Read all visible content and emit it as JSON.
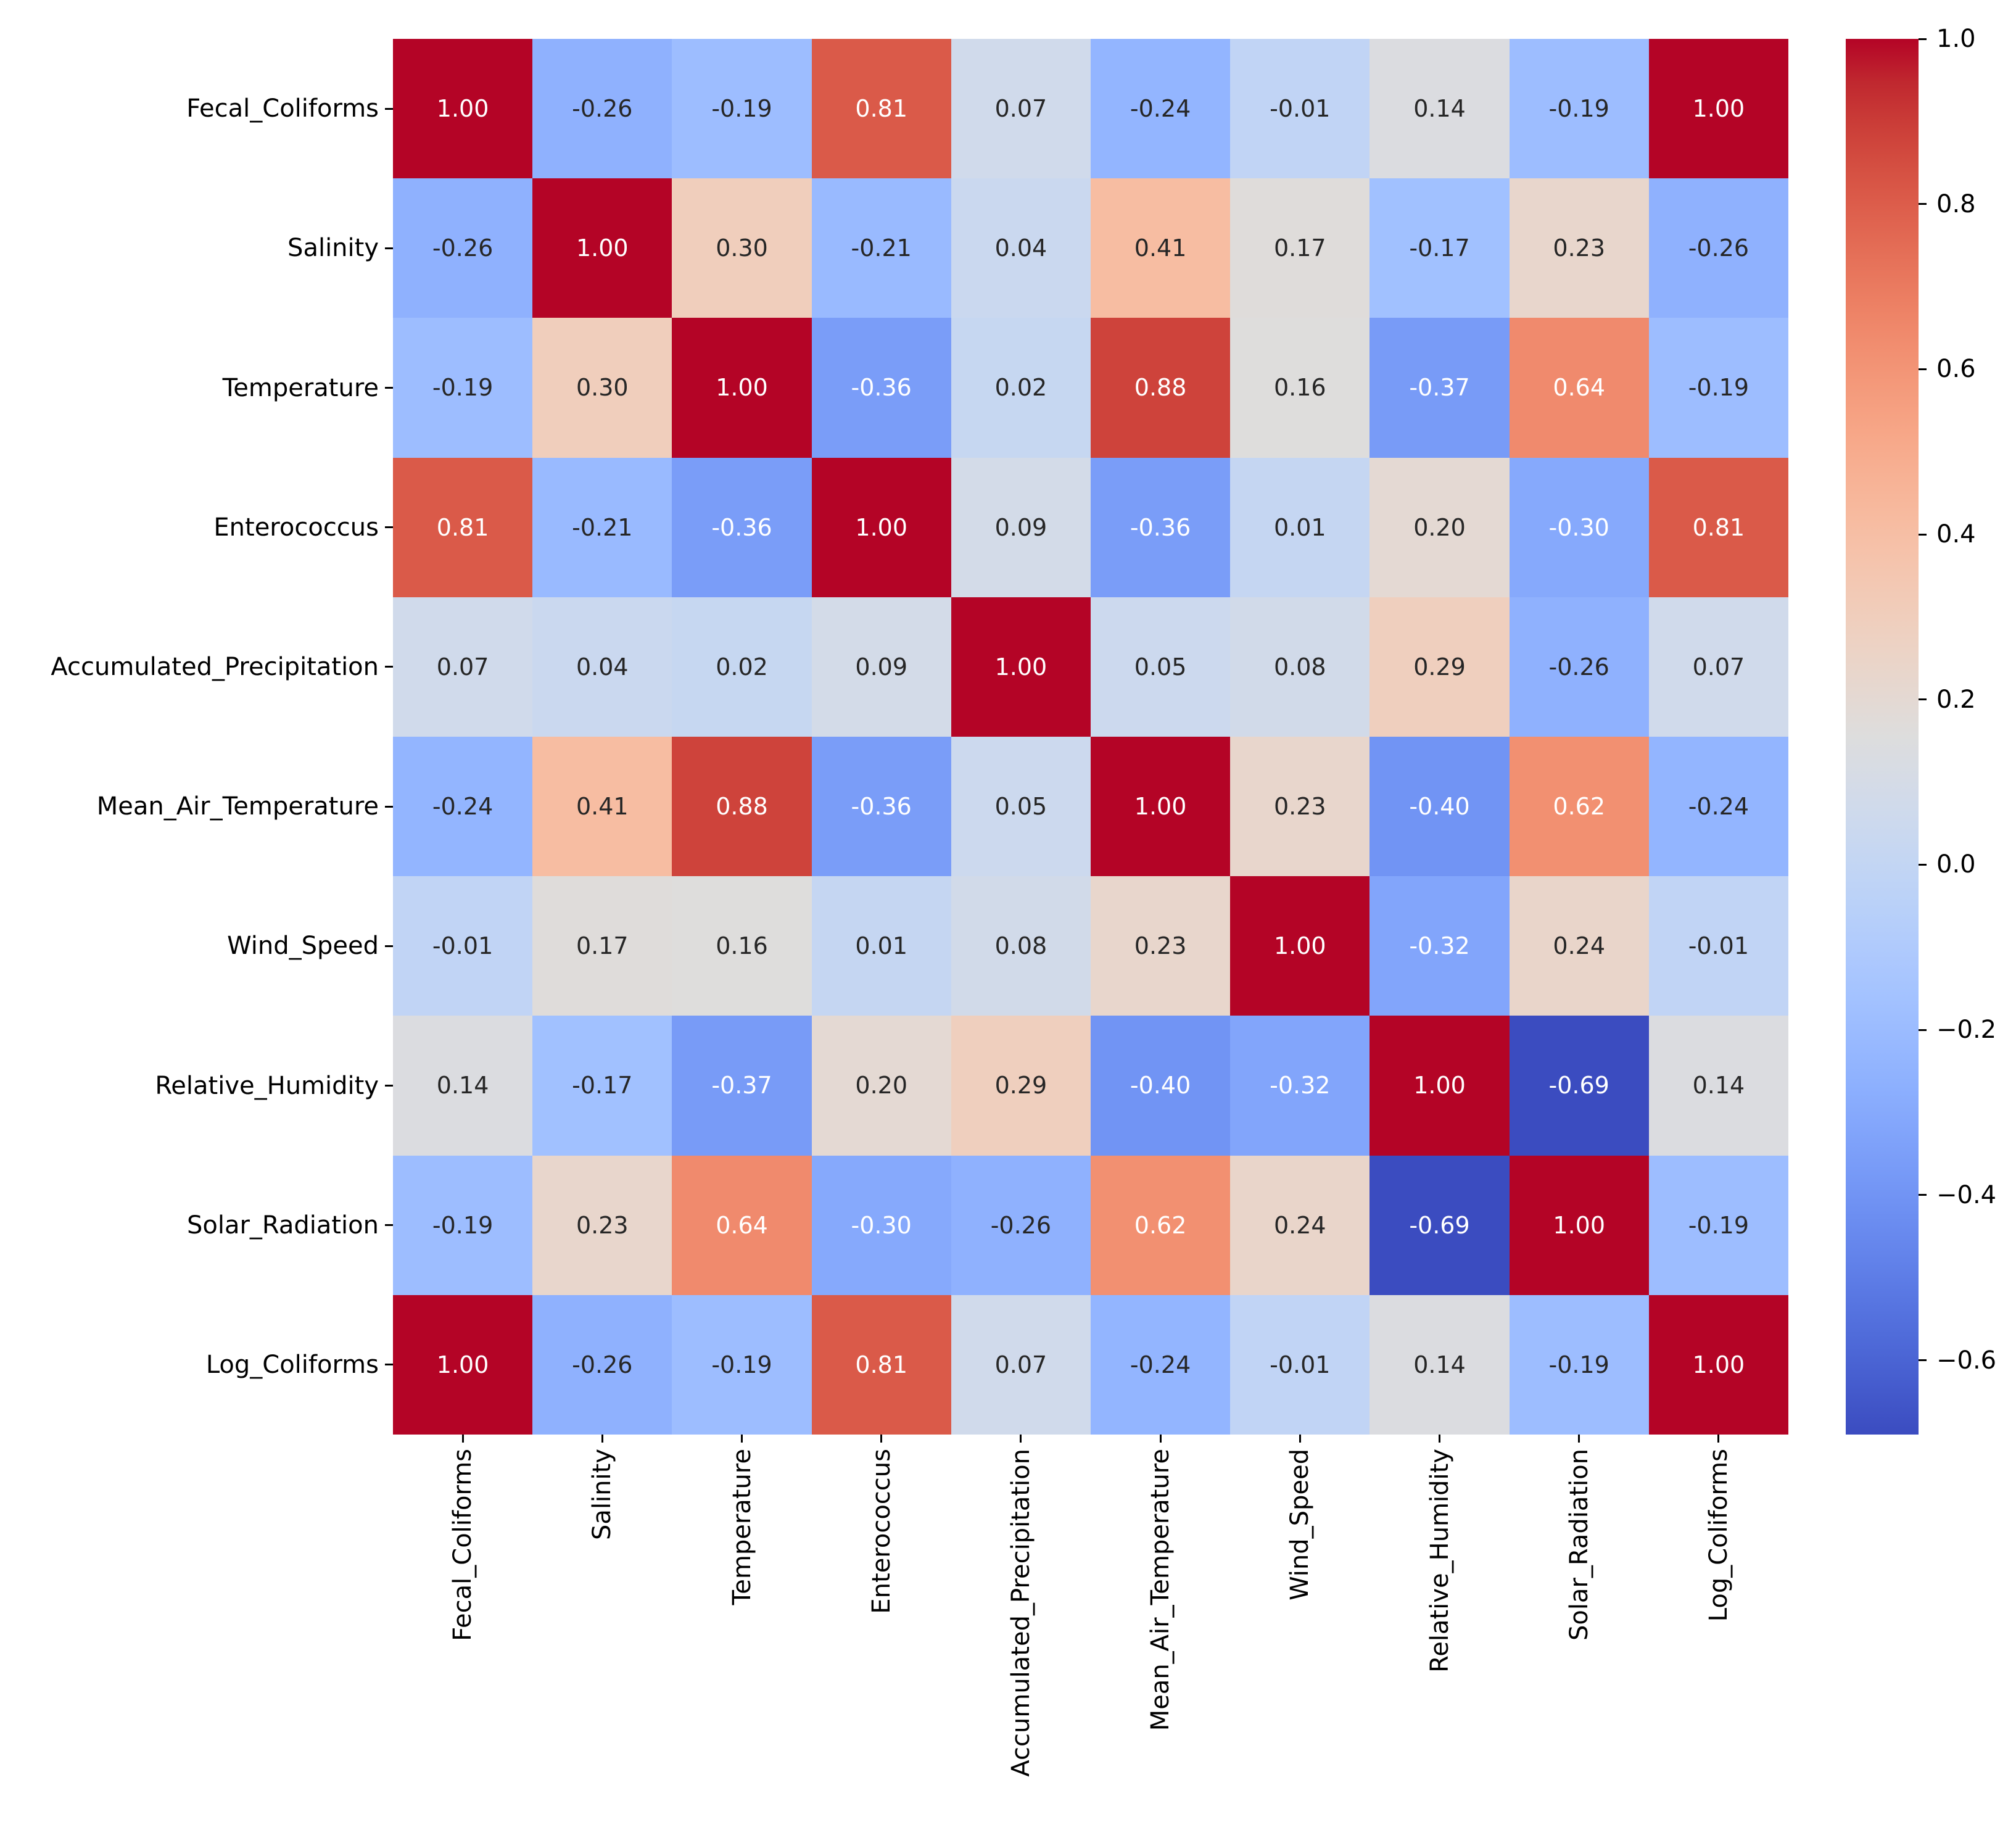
{
  "figure": {
    "background_color": "#ffffff",
    "text_color": "#000000"
  },
  "chart_data": {
    "type": "heatmap",
    "title": "",
    "xlabel": "",
    "ylabel": "",
    "variables": [
      "Fecal_Coliforms",
      "Salinity",
      "Temperature",
      "Enterococcus",
      "Accumulated_Precipitation",
      "Mean_Air_Temperature",
      "Wind_Speed",
      "Relative_Humidity",
      "Solar_Radiation",
      "Log_Coliforms"
    ],
    "matrix": [
      [
        1.0,
        -0.26,
        -0.19,
        0.81,
        0.07,
        -0.24,
        -0.01,
        0.14,
        -0.19,
        1.0
      ],
      [
        -0.26,
        1.0,
        0.3,
        -0.21,
        0.04,
        0.41,
        0.17,
        -0.17,
        0.23,
        -0.26
      ],
      [
        -0.19,
        0.3,
        1.0,
        -0.36,
        0.02,
        0.88,
        0.16,
        -0.37,
        0.64,
        -0.19
      ],
      [
        0.81,
        -0.21,
        -0.36,
        1.0,
        0.09,
        -0.36,
        0.01,
        0.2,
        -0.3,
        0.81
      ],
      [
        0.07,
        0.04,
        0.02,
        0.09,
        1.0,
        0.05,
        0.08,
        0.29,
        -0.26,
        0.07
      ],
      [
        -0.24,
        0.41,
        0.88,
        -0.36,
        0.05,
        1.0,
        0.23,
        -0.4,
        0.62,
        -0.24
      ],
      [
        -0.01,
        0.17,
        0.16,
        0.01,
        0.08,
        0.23,
        1.0,
        -0.32,
        0.24,
        -0.01
      ],
      [
        0.14,
        -0.17,
        -0.37,
        0.2,
        0.29,
        -0.4,
        -0.32,
        1.0,
        -0.69,
        0.14
      ],
      [
        -0.19,
        0.23,
        0.64,
        -0.3,
        -0.26,
        0.62,
        0.24,
        -0.69,
        1.0,
        -0.19
      ],
      [
        1.0,
        -0.26,
        -0.19,
        0.81,
        0.07,
        -0.24,
        -0.01,
        0.14,
        -0.19,
        1.0
      ]
    ],
    "vmin": -0.69,
    "vmax": 1.0,
    "value_decimals": 2,
    "grid": false,
    "legend_position": "colorbar-right",
    "colormap": "coolwarm",
    "colorbar": {
      "tick_values": [
        1.0,
        0.8,
        0.6,
        0.4,
        0.2,
        0.0,
        -0.2,
        -0.4,
        -0.6
      ],
      "tick_labels": [
        "1.0",
        "0.8",
        "0.6",
        "0.4",
        "0.2",
        "0.0",
        "−0.2",
        "−0.4",
        "−0.6"
      ]
    },
    "annotation_colors": {
      "dark_text": "#262626",
      "light_text": "#ffffff",
      "luminance_threshold": 0.408
    },
    "colormap_anchors": [
      [
        0.0,
        "#3B4CC0"
      ],
      [
        0.03125,
        "#445ACC"
      ],
      [
        0.0625,
        "#4D68D7"
      ],
      [
        0.09375,
        "#5775E1"
      ],
      [
        0.125,
        "#6282EA"
      ],
      [
        0.15625,
        "#6C8EF1"
      ],
      [
        0.1875,
        "#779AF7"
      ],
      [
        0.21875,
        "#82A5FB"
      ],
      [
        0.25,
        "#8DB0FE"
      ],
      [
        0.28125,
        "#98B9FF"
      ],
      [
        0.3125,
        "#A3C2FF"
      ],
      [
        0.34375,
        "#AEC9FD"
      ],
      [
        0.375,
        "#B8D0F9"
      ],
      [
        0.40625,
        "#C2D5F4"
      ],
      [
        0.4375,
        "#CCD9EE"
      ],
      [
        0.46875,
        "#D5DBE6"
      ],
      [
        0.5,
        "#DDDDDD"
      ],
      [
        0.53125,
        "#E5D8D1"
      ],
      [
        0.5625,
        "#ECD3C5"
      ],
      [
        0.59375,
        "#F1CCB9"
      ],
      [
        0.625,
        "#F5C4AD"
      ],
      [
        0.65625,
        "#F7BBA0"
      ],
      [
        0.6875,
        "#F7B194"
      ],
      [
        0.71875,
        "#F7A687"
      ],
      [
        0.75,
        "#F49A7B"
      ],
      [
        0.78125,
        "#F18D6F"
      ],
      [
        0.8125,
        "#EC7F63"
      ],
      [
        0.84375,
        "#E57058"
      ],
      [
        0.875,
        "#DE604D"
      ],
      [
        0.90625,
        "#D55042"
      ],
      [
        0.9375,
        "#CB3E38"
      ],
      [
        0.96875,
        "#C0282F"
      ],
      [
        1.0,
        "#B40426"
      ]
    ]
  }
}
